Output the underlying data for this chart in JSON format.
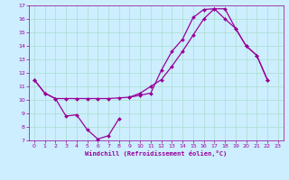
{
  "title": "",
  "xlabel": "Windchill (Refroidissement éolien,°C)",
  "ylabel": "",
  "bg_color": "#cceeff",
  "grid_color": "#aaddcc",
  "line_color": "#990099",
  "marker": "D",
  "markersize": 2.0,
  "linewidth": 0.9,
  "xlim": [
    -0.5,
    23.5
  ],
  "ylim": [
    7,
    17
  ],
  "xticks": [
    0,
    1,
    2,
    3,
    4,
    5,
    6,
    7,
    8,
    9,
    10,
    11,
    12,
    13,
    14,
    15,
    16,
    17,
    18,
    19,
    20,
    21,
    22,
    23
  ],
  "yticks": [
    7,
    8,
    9,
    10,
    11,
    12,
    13,
    14,
    15,
    16,
    17
  ],
  "series": [
    {
      "x": [
        0,
        1,
        2,
        3,
        4,
        5,
        6,
        7,
        8
      ],
      "y": [
        11.5,
        10.5,
        10.1,
        8.8,
        8.9,
        7.8,
        7.1,
        7.35,
        8.6
      ]
    },
    {
      "x": [
        0,
        1,
        2,
        3,
        4,
        5,
        6,
        7,
        8,
        9,
        10,
        11,
        12,
        13,
        14,
        15,
        16,
        17,
        18,
        19,
        20,
        21,
        22
      ],
      "y": [
        11.5,
        10.5,
        10.1,
        10.1,
        10.1,
        10.1,
        10.1,
        10.1,
        10.15,
        10.2,
        10.35,
        10.5,
        12.2,
        13.6,
        14.5,
        16.1,
        16.7,
        16.75,
        16.0,
        15.3,
        14.0,
        13.3,
        11.5
      ]
    },
    {
      "x": [
        9,
        10,
        11,
        12,
        13,
        14,
        15,
        16,
        17,
        18,
        19,
        20,
        21,
        22
      ],
      "y": [
        10.2,
        10.5,
        11.0,
        11.5,
        12.5,
        13.6,
        14.8,
        16.0,
        16.75,
        16.75,
        15.3,
        14.0,
        13.3,
        11.5
      ]
    }
  ]
}
